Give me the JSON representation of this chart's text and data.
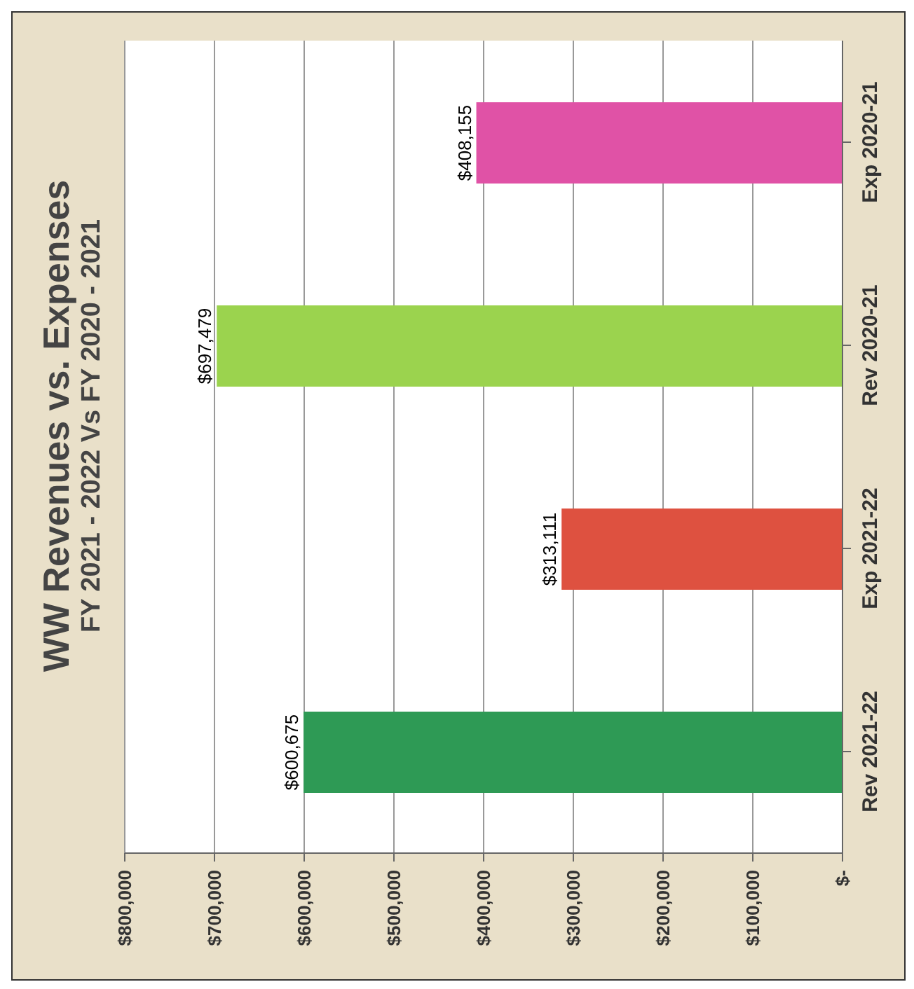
{
  "chart_data": {
    "type": "bar",
    "orientation": "horizontal",
    "title": "WW Revenues vs. Expenses",
    "subtitle": "FY 2021 - 2022 Vs FY 2020 - 2021",
    "categories": [
      "Exp 2020-21",
      "Rev 2020-21",
      "Exp 2021-22",
      "Rev 2021-22"
    ],
    "values": [
      408155,
      697479,
      313111,
      600675
    ],
    "colors": [
      "#e052a6",
      "#9bd34e",
      "#de5140",
      "#2e9a55"
    ],
    "value_labels": [
      "$408,155",
      "$697,479",
      "$313,111",
      "$600,675"
    ],
    "xlim": [
      800000,
      0
    ],
    "xticks": [
      {
        "value": 800000,
        "label": "$800,000"
      },
      {
        "value": 700000,
        "label": "$700,000"
      },
      {
        "value": 600000,
        "label": "$600,000"
      },
      {
        "value": 500000,
        "label": "$500,000"
      },
      {
        "value": 400000,
        "label": "$400,000"
      },
      {
        "value": 300000,
        "label": "$300,000"
      },
      {
        "value": 200000,
        "label": "$200,000"
      },
      {
        "value": 100000,
        "label": "$100,000"
      },
      {
        "value": 0,
        "label": "$-"
      }
    ],
    "grid": "x",
    "legend": false
  }
}
